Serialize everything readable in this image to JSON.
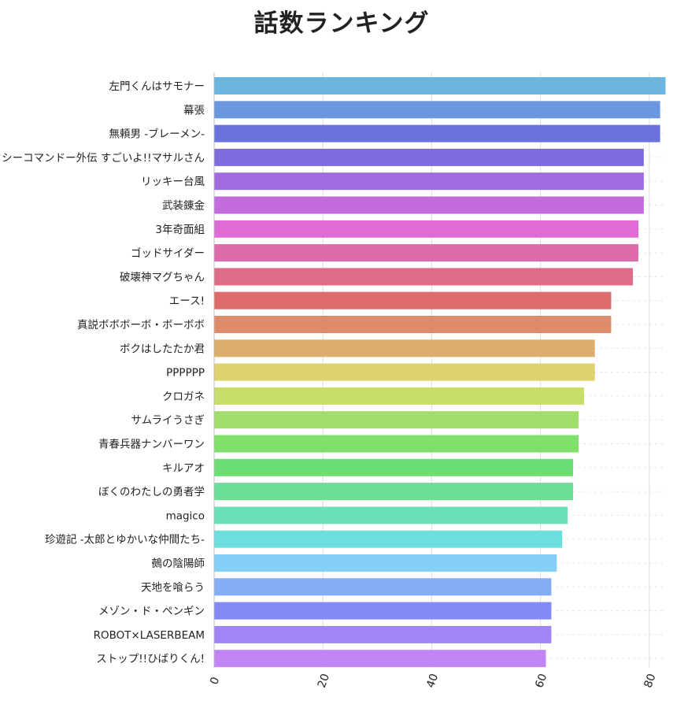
{
  "chart_data": {
    "type": "bar",
    "orientation": "horizontal",
    "title": "話数ランキング",
    "xlabel": "",
    "ylabel": "",
    "xlim": [
      0,
      83
    ],
    "x_ticks": [
      "0",
      "20",
      "40",
      "60",
      "80"
    ],
    "grid": "vertical dashed",
    "legend": "none",
    "categories": [
      "左門くんはサモナー",
      "幕張",
      "無頼男 -ブレーメン-",
      "セクシーコマンドー外伝 すごいよ!!マサルさん",
      "リッキー台風",
      "武装錬金",
      "3年奇面組",
      "ゴッドサイダー",
      "破壊神マグちゃん",
      "エース!",
      "真説ボボボーボ・ボーボボ",
      "ボクはしたたか君",
      "PPPPPP",
      "クロガネ",
      "サムライうさぎ",
      "青春兵器ナンバーワン",
      "キルアオ",
      "ぼくのわたしの勇者学",
      "magico",
      "珍遊記 -太郎とゆかいな仲間たち-",
      "鵺の陰陽師",
      "天地を喰らう",
      "メゾン・ド・ペンギン",
      "ROBOT×LASERBEAM",
      "ストップ!!ひばりくん!"
    ],
    "values": [
      83,
      82,
      82,
      79,
      79,
      79,
      78,
      78,
      77,
      73,
      73,
      70,
      70,
      68,
      67,
      67,
      66,
      66,
      65,
      64,
      63,
      62,
      62,
      62,
      61
    ],
    "colors": [
      "#6bb5de",
      "#6b97de",
      "#6b72de",
      "#7f6bde",
      "#a06bde",
      "#c46bde",
      "#de6bd6",
      "#de6bac",
      "#de6b88",
      "#de6b6b",
      "#de8b6b",
      "#ddad6b",
      "#ddd26b",
      "#c7de6b",
      "#a2de6b",
      "#80de6b",
      "#6bde74",
      "#6bde98",
      "#6bdeba",
      "#6bdedd",
      "#85cff6",
      "#85adf6",
      "#8589f6",
      "#9f85f6",
      "#c385f6"
    ]
  }
}
